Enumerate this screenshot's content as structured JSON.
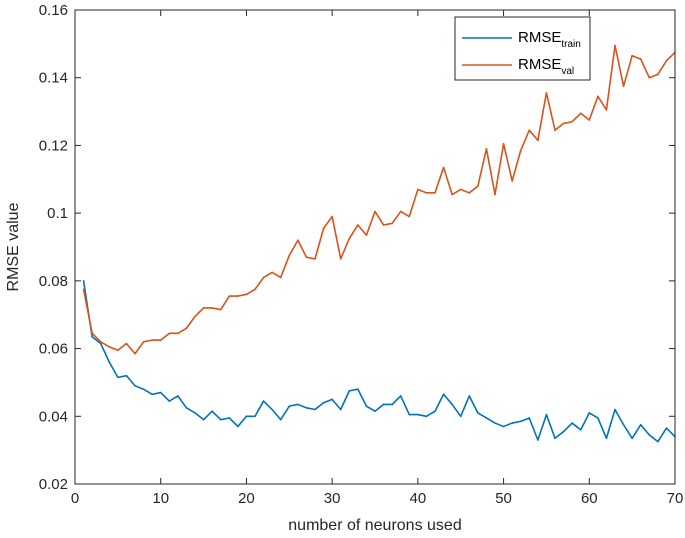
{
  "chart_data": {
    "type": "line",
    "title": "",
    "xlabel": "number of neurons used",
    "ylabel": "RMSE value",
    "xlim": [
      0,
      70
    ],
    "ylim": [
      0.02,
      0.16
    ],
    "xticks": [
      0,
      10,
      20,
      30,
      40,
      50,
      60,
      70
    ],
    "xtick_labels": [
      "0",
      "10",
      "20",
      "30",
      "40",
      "50",
      "60",
      "70"
    ],
    "yticks": [
      0.02,
      0.04,
      0.06,
      0.08,
      0.1,
      0.12,
      0.14,
      0.16
    ],
    "ytick_labels": [
      "0.02",
      "0.04",
      "0.06",
      "0.08",
      "0.1",
      "0.12",
      "0.14",
      "0.16"
    ],
    "grid": false,
    "legend_position": "top-right",
    "x": [
      1,
      2,
      3,
      4,
      5,
      6,
      7,
      8,
      9,
      10,
      11,
      12,
      13,
      14,
      15,
      16,
      17,
      18,
      19,
      20,
      21,
      22,
      23,
      24,
      25,
      26,
      27,
      28,
      29,
      30,
      31,
      32,
      33,
      34,
      35,
      36,
      37,
      38,
      39,
      40,
      41,
      42,
      43,
      44,
      45,
      46,
      47,
      48,
      49,
      50,
      51,
      52,
      53,
      54,
      55,
      56,
      57,
      58,
      59,
      60,
      61,
      62,
      63,
      64,
      65,
      66,
      67,
      68,
      69,
      70
    ],
    "series": [
      {
        "name": "RMSE",
        "subscript": "train",
        "color": "#0072BD",
        "values": [
          0.08,
          0.0635,
          0.0615,
          0.056,
          0.0515,
          0.052,
          0.049,
          0.048,
          0.0465,
          0.047,
          0.0445,
          0.046,
          0.0425,
          0.041,
          0.039,
          0.0415,
          0.039,
          0.0395,
          0.037,
          0.04,
          0.04,
          0.0445,
          0.042,
          0.039,
          0.043,
          0.0435,
          0.0425,
          0.042,
          0.044,
          0.045,
          0.042,
          0.0475,
          0.048,
          0.043,
          0.0415,
          0.0435,
          0.0435,
          0.046,
          0.0405,
          0.0405,
          0.04,
          0.0415,
          0.0465,
          0.0435,
          0.04,
          0.046,
          0.041,
          0.0395,
          0.038,
          0.037,
          0.038,
          0.0385,
          0.0395,
          0.033,
          0.0405,
          0.0335,
          0.0355,
          0.038,
          0.036,
          0.041,
          0.0395,
          0.0335,
          0.042,
          0.0375,
          0.0335,
          0.0375,
          0.0345,
          0.0325,
          0.0365,
          0.034
        ]
      },
      {
        "name": "RMSE",
        "subscript": "val",
        "color": "#D95319",
        "values": [
          0.0775,
          0.0645,
          0.062,
          0.0605,
          0.0595,
          0.0615,
          0.0585,
          0.062,
          0.0625,
          0.0625,
          0.0645,
          0.0645,
          0.066,
          0.0695,
          0.072,
          0.072,
          0.0715,
          0.0755,
          0.0755,
          0.076,
          0.0775,
          0.081,
          0.0825,
          0.081,
          0.0875,
          0.092,
          0.087,
          0.0865,
          0.0955,
          0.099,
          0.0865,
          0.0925,
          0.0965,
          0.0935,
          0.1005,
          0.0965,
          0.097,
          0.1005,
          0.099,
          0.107,
          0.106,
          0.106,
          0.1135,
          0.1055,
          0.107,
          0.106,
          0.108,
          0.119,
          0.1055,
          0.1205,
          0.1095,
          0.1185,
          0.1245,
          0.1215,
          0.1355,
          0.1245,
          0.1265,
          0.127,
          0.1295,
          0.1275,
          0.1345,
          0.1305,
          0.1495,
          0.1375,
          0.1465,
          0.1455,
          0.14,
          0.141,
          0.145,
          0.1475
        ]
      }
    ]
  }
}
